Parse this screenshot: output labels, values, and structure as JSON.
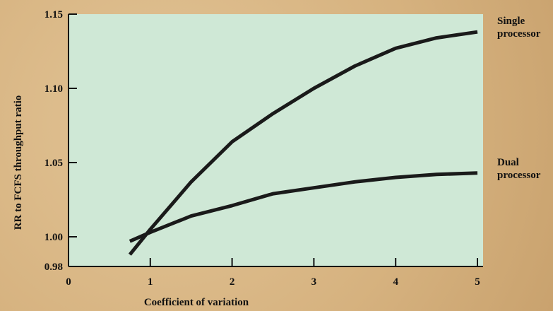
{
  "chart_data": {
    "type": "line",
    "xlabel": "Coefficient of variation",
    "ylabel": "RR to FCFS throughput ratio",
    "x": [
      0.75,
      1,
      1.5,
      2,
      2.5,
      3,
      3.5,
      4,
      4.5,
      5
    ],
    "series": [
      {
        "name": "Single processor",
        "color": "#1a1a1a",
        "values": [
          0.988,
          1.005,
          1.037,
          1.064,
          1.083,
          1.1,
          1.115,
          1.127,
          1.134,
          1.138
        ]
      },
      {
        "name": "Dual processor",
        "color": "#1a1a1a",
        "values": [
          0.997,
          1.003,
          1.014,
          1.021,
          1.029,
          1.033,
          1.037,
          1.04,
          1.042,
          1.043
        ]
      }
    ],
    "xlim": [
      0,
      5
    ],
    "xticks": [
      0,
      1,
      2,
      3,
      4,
      5
    ],
    "ylim": [
      0.98,
      1.15
    ],
    "yticks": [
      1.15,
      {
        "value": 1.1,
        "label": "1.10"
      },
      1.05,
      {
        "value": 1.0,
        "label": "1.00"
      },
      0.98
    ],
    "plot_color": "#cfe8d6"
  }
}
